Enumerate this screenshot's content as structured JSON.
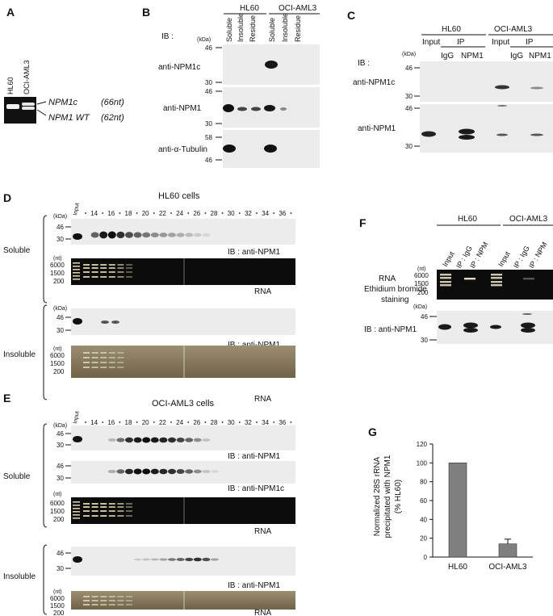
{
  "panels": {
    "A": {
      "letter": "A",
      "lanes": [
        "HL60",
        "OCI-AML3"
      ],
      "bands": [
        "NPM1c",
        "NPM1 WT"
      ],
      "band_sizes": [
        "(66nt)",
        "(62nt)"
      ]
    },
    "B": {
      "letter": "B",
      "groups": [
        "HL60",
        "OCI-AML3"
      ],
      "lanes": [
        "Soluble",
        "Insoluble",
        "Residue",
        "Soluble",
        "Insoluble",
        "Residue"
      ],
      "ib_label": "IB :",
      "unit": "(kDa)",
      "rows": [
        {
          "label": "anti-NPM1c",
          "markers": [
            "46",
            "30"
          ]
        },
        {
          "label": "anti-NPM1",
          "markers": [
            "46",
            "30"
          ]
        },
        {
          "label": "anti-α-Tubulin",
          "markers": [
            "58",
            "46"
          ]
        }
      ]
    },
    "C": {
      "letter": "C",
      "groups": [
        "HL60",
        "OCI-AML3"
      ],
      "sublabels": [
        "Input",
        "IP",
        "Input",
        "IP"
      ],
      "lanes": [
        "IgG",
        "NPM1",
        "IgG",
        "NPM1"
      ],
      "ib_label": "IB :",
      "unit": "(kDa)",
      "rows": [
        {
          "label": "anti-NPM1c",
          "markers": [
            "46",
            "30"
          ]
        },
        {
          "label": "anti-NPM1",
          "markers": [
            "46",
            "30"
          ]
        }
      ]
    },
    "D": {
      "letter": "D",
      "title": "HL60 cells",
      "input_label": "Input",
      "fractions": [
        "14",
        "16",
        "18",
        "20",
        "22",
        "24",
        "26",
        "28",
        "30",
        "32",
        "34",
        "36"
      ],
      "kda_unit": "(kDa)",
      "nt_unit": "(nt)",
      "kda_markers": [
        "46",
        "30"
      ],
      "nt_markers": [
        "6000",
        "1500",
        "200"
      ],
      "sections": [
        "Soluble",
        "Insoluble"
      ],
      "ib_label": "IB : anti-NPM1",
      "rna_label": "RNA"
    },
    "E": {
      "letter": "E",
      "title": "OCI-AML3 cells",
      "input_label": "Input",
      "fractions": [
        "14",
        "16",
        "18",
        "20",
        "22",
        "24",
        "26",
        "28",
        "30",
        "32",
        "34",
        "36"
      ],
      "kda_unit": "(kDa)",
      "nt_unit": "(nt)",
      "kda_markers": [
        "46",
        "30"
      ],
      "nt_markers": [
        "6000",
        "1500",
        "200"
      ],
      "sections": [
        "Soluble",
        "Insoluble"
      ],
      "ib_labels": [
        "IB : anti-NPM1",
        "IB : anti-NPM1c",
        "IB : anti-NPM1"
      ],
      "rna_label": "RNA"
    },
    "F": {
      "letter": "F",
      "groups": [
        "HL60",
        "OCI-AML3"
      ],
      "lanes": [
        "Input",
        "IP : IgG",
        "IP : NPM",
        "Input",
        "IP : IgG",
        "IP : NPM"
      ],
      "rna_lines": [
        "RNA",
        "Ethidium bromide",
        "staining"
      ],
      "nt_unit": "(nt)",
      "nt_markers": [
        "6000",
        "1500",
        "200"
      ],
      "kda_unit": "(kDa)",
      "kda_markers": [
        "46",
        "30"
      ],
      "ib_label": "IB : anti-NPM1"
    },
    "G": {
      "letter": "G",
      "ylabel_lines": [
        "Normalized 28S rRNA",
        "precipitated with NPM1",
        "(% HL60)"
      ]
    }
  },
  "chart_data": {
    "type": "bar",
    "categories": [
      "HL60",
      "OCI-AML3"
    ],
    "values": [
      100,
      14
    ],
    "error": [
      0,
      5
    ],
    "ylim": [
      0,
      120
    ],
    "yticks": [
      0,
      20,
      40,
      60,
      80,
      100,
      120
    ],
    "ylabel": "Normalized 28S rRNA precipitated with NPM1 (% HL60)",
    "xlabel": "",
    "title": "",
    "bar_color": "#7f7f7f",
    "grid": false
  },
  "colors": {
    "blot_bg": "#e9e9e9",
    "band": "#1a1a1a",
    "gel_bg": "#0c0c0c",
    "gel_band": "#d9cfa8",
    "silver_bg": "#8a7b5e"
  }
}
